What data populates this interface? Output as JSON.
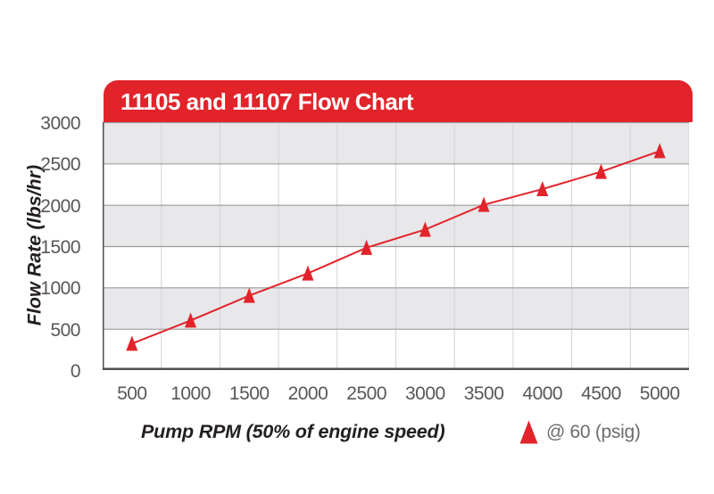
{
  "chart": {
    "title": "11105 and 11107 Flow Chart",
    "xlabel": "Pump RPM (50% of engine speed)",
    "ylabel": "Flow Rate (lbs/hr)"
  },
  "chart_data": {
    "type": "line",
    "title": "11105 and 11107 Flow Chart",
    "xlabel": "Pump RPM (50% of engine speed)",
    "ylabel": "Flow Rate (lbs/hr)",
    "x": [
      500,
      1000,
      1500,
      2000,
      2500,
      3000,
      3500,
      4000,
      4500,
      5000
    ],
    "series": [
      {
        "name": "@ 60 (psig)",
        "marker": "triangle-up",
        "values": [
          320,
          600,
          900,
          1170,
          1480,
          1700,
          2000,
          2190,
          2400,
          2650
        ]
      }
    ],
    "ylim": [
      0,
      3000
    ],
    "ytick_interval": 500,
    "yticks": [
      "3000",
      "2500",
      "2000",
      "1500",
      "1000",
      "500",
      "0"
    ],
    "xticks": [
      "500",
      "1000",
      "1500",
      "2000",
      "2500",
      "3000",
      "3500",
      "4000",
      "4500",
      "5000"
    ],
    "grid": true,
    "band_fill": "alternating horizontal bands, gray on top band",
    "legend_position": "bottom-right"
  },
  "legend": {
    "label": "@ 60 (psig)"
  },
  "colors": {
    "red": "#E2232A",
    "band_gray": "#E8E8EA",
    "h_grid": "#9C9C9E",
    "v_grid": "#D8D8DA",
    "axis": "#4D4E50",
    "tick_text": "#56575A",
    "legend_text": "#6B6C6F",
    "label_text": "#231F20",
    "title_text": "#FFFFFF",
    "background": "#FFFFFF"
  }
}
